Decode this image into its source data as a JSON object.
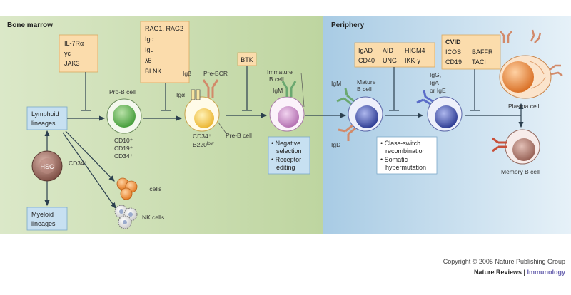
{
  "regions": {
    "bone_marrow": "Bone marrow",
    "periphery": "Periphery"
  },
  "boxes": {
    "il7": [
      "IL-7Rα",
      "γc",
      "JAK3"
    ],
    "rag": [
      "RAG1, RAG2",
      "Igα",
      "Igμ",
      "λ5",
      "BLNK"
    ],
    "btk": "BTK",
    "higm": [
      "IgAD",
      "CD40",
      "AID",
      "UNG",
      "HIGM4",
      "IKK-γ"
    ],
    "cvid": {
      "title": "CVID",
      "items": [
        "ICOS",
        "CD19",
        "BAFFR",
        "TACI"
      ]
    },
    "lymphoid": [
      "Lymphoid",
      "lineages"
    ],
    "myeloid": [
      "Myeloid",
      "lineages"
    ],
    "negative": [
      "• Negative",
      "selection",
      "• Receptor",
      "editing"
    ],
    "classswitch": [
      "• Class-switch",
      "recombination",
      "• Somatic",
      "hypermutation"
    ]
  },
  "labels": {
    "hsc": "HSC",
    "cd34": "CD34⁺",
    "prob": "Pro-B cell",
    "prob_markers": [
      "CD10⁺",
      "CD19⁺",
      "CD34⁺"
    ],
    "igb": "Igβ",
    "iga": "Igα",
    "prebcr": "Pre-BCR",
    "preb_markers": [
      "CD34⁺",
      "B220"
    ],
    "preb_low": "low",
    "preb": "Pre-B cell",
    "immature": [
      "Immature",
      "B cell"
    ],
    "igm": "IgM",
    "mature": [
      "Mature",
      "B cell"
    ],
    "igm2": "IgM",
    "igd": "IgD",
    "switched": [
      "IgG,",
      "IgA",
      "or IgE"
    ],
    "plasma": "Plasma cell",
    "memory": "Memory B cell",
    "tcells": "T cells",
    "nkcells": "NK cells"
  },
  "footer": {
    "copyright": "Copyright © 2005 Nature Publishing Group",
    "journal_a": "Nature Reviews",
    "sep": " | ",
    "journal_b": "Immunology"
  },
  "colors": {
    "marrow_bg": "#c9dcae",
    "periphery_bg": "#b9d6ea",
    "box_orange": "#fbdcac",
    "box_blue": "#c7e0f1",
    "hsc": "#8a5a4e",
    "prob": "#5eb04c",
    "preb": "#f2c040",
    "immature": "#c98ac6",
    "bcell": "#3848a8",
    "plasma": "#e57a2a",
    "memory": "#a56d60",
    "tcell": "#f08a2a"
  }
}
